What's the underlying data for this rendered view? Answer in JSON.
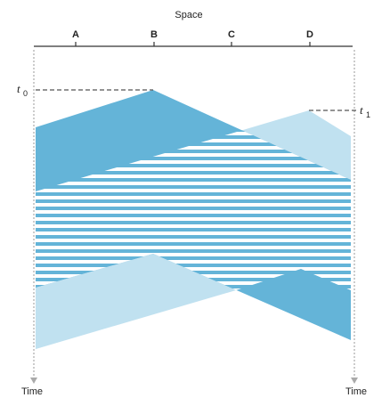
{
  "diagram": {
    "axis_title": "Space",
    "nodes": [
      "A",
      "B",
      "C",
      "D"
    ],
    "time_left": "Time",
    "time_right": "Time",
    "t0": {
      "var": "t",
      "sub": "0"
    },
    "t1": {
      "var": "t",
      "sub": "1"
    }
  },
  "colors": {
    "dark_signal": "#64b4d8",
    "light_signal": "#c0e1f0",
    "collision_stripe": "#ffffff",
    "axis": "#333333",
    "time_axis": "#aaaaaa",
    "dashed": "#555555"
  }
}
